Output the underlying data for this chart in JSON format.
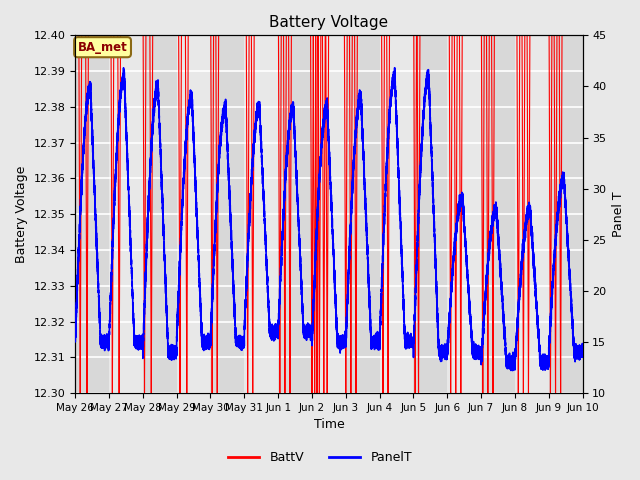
{
  "title": "Battery Voltage",
  "xlabel": "Time",
  "ylabel_left": "Battery Voltage",
  "ylabel_right": "Panel T",
  "ylim_left": [
    12.3,
    12.4
  ],
  "ylim_right": [
    10,
    45
  ],
  "yticks_left": [
    12.3,
    12.31,
    12.32,
    12.33,
    12.34,
    12.35,
    12.36,
    12.37,
    12.38,
    12.39,
    12.4
  ],
  "yticks_right": [
    10,
    15,
    20,
    25,
    30,
    35,
    40,
    45
  ],
  "xtick_labels": [
    "May 26",
    "May 27",
    "May 28",
    "May 29",
    "May 30",
    "May 31",
    "Jun 1",
    "Jun 2",
    "Jun 3",
    "Jun 4",
    "Jun 5",
    "Jun 6",
    "Jun 7",
    "Jun 8",
    "Jun 9",
    "Jun 10"
  ],
  "annotation_text": "BA_met",
  "annotation_color": "#8B0000",
  "annotation_bg": "#FFFFA0",
  "annotation_edge": "#8B6914",
  "fig_facecolor": "#E8E8E8",
  "band_colors": [
    "#D8D8D8",
    "#E8E8E8"
  ],
  "batt_color": "red",
  "panel_color": "blue",
  "grid_color": "white",
  "days": 15,
  "pts_per_day": 1440
}
